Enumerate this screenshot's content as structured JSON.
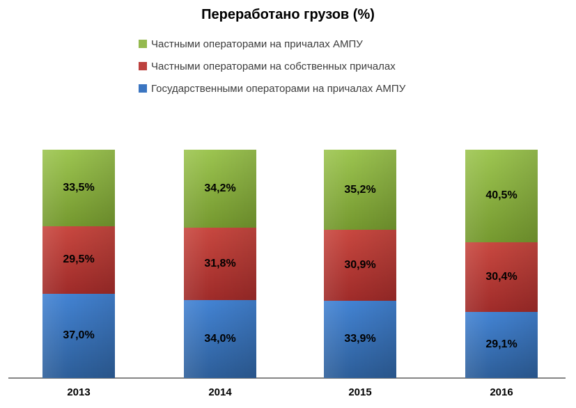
{
  "title": "Переработано грузов (%)",
  "chart_data": {
    "type": "bar",
    "stacked": true,
    "unit": "%",
    "title": "Переработано грузов (%)",
    "categories": [
      "2013",
      "2014",
      "2015",
      "2016"
    ],
    "series": [
      {
        "name": "Государственными операторами на причалах АМПУ",
        "stack_position": "bottom",
        "values": [
          37.0,
          34.0,
          33.9,
          29.1
        ],
        "labels": [
          "37,0%",
          "34,0%",
          "33,9%",
          "29,1%"
        ],
        "color_top": "#4383D3",
        "color_bottom": "#2D5E99",
        "legend_color": "#3B75C1"
      },
      {
        "name": "Частными операторами на собственных причалах",
        "stack_position": "middle",
        "values": [
          29.5,
          31.8,
          30.9,
          30.4
        ],
        "labels": [
          "29,5%",
          "31,8%",
          "30,9%",
          "30,4%"
        ],
        "color_top": "#C84840",
        "color_bottom": "#9F2B29",
        "legend_color": "#BD413E"
      },
      {
        "name": "Частными операторами на причалах АМПУ",
        "stack_position": "top",
        "values": [
          33.5,
          34.2,
          35.2,
          40.5
        ],
        "labels": [
          "33,5%",
          "34,2%",
          "35,2%",
          "40,5%"
        ],
        "color_top": "#9DC551",
        "color_bottom": "#75992F",
        "legend_color": "#94B94E"
      }
    ],
    "ylim": [
      0,
      100
    ],
    "grid": false,
    "legend_position": "top-left",
    "legend_order": [
      "Частными операторами на причалах АМПУ",
      "Частными операторами на собственных причалах",
      "Государственными операторами на причалах АМПУ"
    ],
    "label_color": "#000000",
    "axis_line_color": "#848484"
  }
}
